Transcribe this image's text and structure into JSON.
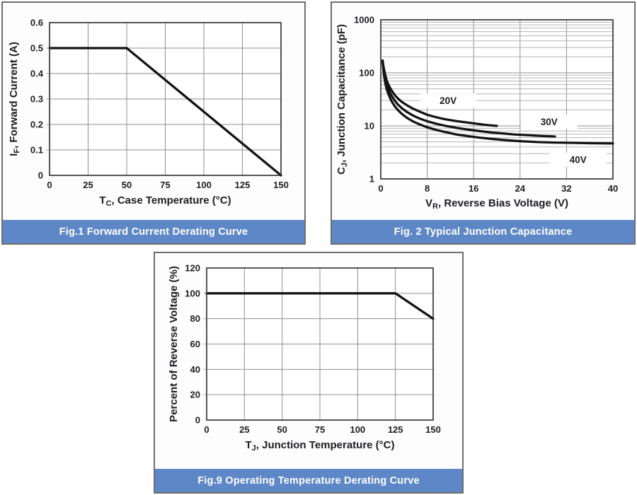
{
  "theme": {
    "page_bg": "#ffffff",
    "panel_bg": "#fdfdfd",
    "panel_border": "#6e6e6e",
    "caption_bg": "#5d87c6",
    "caption_text": "#ffffff",
    "plot_bg": "#ffffff",
    "plot_border": "#2b2b2b",
    "grid": "#8f8f8f",
    "grid_minor": "#b5b5b5",
    "curve": "#141414",
    "label": "#1d1d22",
    "annotation_bg": "#ffffff"
  },
  "chart_data": [
    {
      "id": "fig1",
      "type": "line",
      "caption": "Fig.1 Forward Current Derating Curve",
      "x_axis": {
        "title_parts": [
          {
            "t": "T"
          },
          {
            "s": "C"
          },
          {
            "t": ", Case Temperature (°C)"
          }
        ],
        "min": 0,
        "max": 150,
        "ticks": [
          {
            "v": 0,
            "label": "0"
          },
          {
            "v": 25,
            "label": "25"
          },
          {
            "v": 50,
            "label": "50"
          },
          {
            "v": 75,
            "label": "75"
          },
          {
            "v": 100,
            "label": "100"
          },
          {
            "v": 125,
            "label": "125"
          },
          {
            "v": 150,
            "label": "150"
          }
        ]
      },
      "y_axis": {
        "scale": "linear",
        "title_parts": [
          {
            "t": "I"
          },
          {
            "s": "F"
          },
          {
            "t": ", Forward Current (A)"
          }
        ],
        "min": 0,
        "max": 0.6,
        "ticks": [
          {
            "v": 0,
            "label": "0"
          },
          {
            "v": 0.1,
            "label": "0.1"
          },
          {
            "v": 0.2,
            "label": "0.2"
          },
          {
            "v": 0.3,
            "label": "0.3"
          },
          {
            "v": 0.4,
            "label": "0.4"
          },
          {
            "v": 0.5,
            "label": "0.5"
          },
          {
            "v": 0.6,
            "label": "0.6"
          }
        ],
        "outer_ticks": true
      },
      "grid": true,
      "series": [
        {
          "name": "forward-current-derating",
          "points": [
            [
              0,
              0.5
            ],
            [
              50,
              0.5
            ],
            [
              150,
              0
            ]
          ]
        }
      ],
      "annotations": []
    },
    {
      "id": "fig2",
      "type": "line",
      "caption": "Fig. 2 Typical Junction Capacitance",
      "x_axis": {
        "title_parts": [
          {
            "t": "V"
          },
          {
            "s": "R"
          },
          {
            "t": ", Reverse Bias Voltage (V)"
          }
        ],
        "min": 0,
        "max": 40,
        "ticks": [
          {
            "v": 0,
            "label": "0"
          },
          {
            "v": 8,
            "label": "8"
          },
          {
            "v": 16,
            "label": "16"
          },
          {
            "v": 24,
            "label": "24"
          },
          {
            "v": 32,
            "label": "32"
          },
          {
            "v": 40,
            "label": "40"
          }
        ]
      },
      "y_axis": {
        "scale": "log",
        "title_parts": [
          {
            "t": "C"
          },
          {
            "s": "J"
          },
          {
            "t": ", Junction Capacitance (pF)"
          }
        ],
        "min": 1,
        "max": 1000,
        "ticks": [
          {
            "v": 1,
            "label": "1"
          },
          {
            "v": 10,
            "label": "10"
          },
          {
            "v": 100,
            "label": "100"
          },
          {
            "v": 1000,
            "label": "1000"
          }
        ],
        "outer_ticks": false
      },
      "grid": true,
      "series": [
        {
          "name": "CJ-at-20V",
          "label": "20V",
          "points": [
            [
              0.3,
              170
            ],
            [
              0.45,
              135
            ],
            [
              0.6,
              110
            ],
            [
              0.8,
              88
            ],
            [
              1,
              73
            ],
            [
              1.3,
              60
            ],
            [
              1.6,
              52
            ],
            [
              2,
              44
            ],
            [
              2.5,
              37
            ],
            [
              3,
              32.5
            ],
            [
              3.7,
              28
            ],
            [
              4.5,
              24.5
            ],
            [
              5.5,
              21.3
            ],
            [
              6.5,
              19
            ],
            [
              8,
              16.2
            ],
            [
              9.5,
              14.6
            ],
            [
              11,
              13.4
            ],
            [
              13,
              12.3
            ],
            [
              15,
              11.5
            ],
            [
              17,
              10.8
            ],
            [
              18.5,
              10.3
            ],
            [
              20,
              10
            ]
          ]
        },
        {
          "name": "CJ-at-30V",
          "label": "30V",
          "points": [
            [
              0.3,
              170
            ],
            [
              0.45,
              125
            ],
            [
              0.6,
              97
            ],
            [
              0.8,
              75
            ],
            [
              1,
              61
            ],
            [
              1.3,
              49.5
            ],
            [
              1.6,
              42
            ],
            [
              2,
              35
            ],
            [
              2.5,
              29
            ],
            [
              3,
              25
            ],
            [
              3.7,
              21.3
            ],
            [
              4.5,
              18.3
            ],
            [
              5.5,
              15.8
            ],
            [
              6.5,
              14
            ],
            [
              8,
              12.2
            ],
            [
              9.5,
              11
            ],
            [
              11,
              10.1
            ],
            [
              13,
              9.2
            ],
            [
              15,
              8.5
            ],
            [
              17,
              8
            ],
            [
              19,
              7.5
            ],
            [
              21,
              7.2
            ],
            [
              23,
              6.9
            ],
            [
              25,
              6.7
            ],
            [
              27,
              6.5
            ],
            [
              28.5,
              6.4
            ],
            [
              30,
              6.3
            ]
          ]
        },
        {
          "name": "CJ-at-40V",
          "label": "40V",
          "points": [
            [
              0.3,
              170
            ],
            [
              0.45,
              112
            ],
            [
              0.6,
              84
            ],
            [
              0.8,
              62
            ],
            [
              1,
              50
            ],
            [
              1.3,
              40
            ],
            [
              1.6,
              33.5
            ],
            [
              2,
              27.5
            ],
            [
              2.5,
              22.8
            ],
            [
              3,
              19.6
            ],
            [
              3.7,
              16.6
            ],
            [
              4.5,
              14.2
            ],
            [
              5.5,
              12.2
            ],
            [
              6.5,
              10.9
            ],
            [
              8,
              9.4
            ],
            [
              9.5,
              8.4
            ],
            [
              11,
              7.7
            ],
            [
              13,
              6.9
            ],
            [
              15,
              6.4
            ],
            [
              17,
              6
            ],
            [
              19,
              5.7
            ],
            [
              21,
              5.45
            ],
            [
              24,
              5.15
            ],
            [
              27,
              4.95
            ],
            [
              30,
              4.85
            ],
            [
              33,
              4.78
            ],
            [
              36,
              4.72
            ],
            [
              40,
              4.65
            ]
          ]
        }
      ],
      "annotations": [
        {
          "text": "20V",
          "x": 11.6,
          "y": 30
        },
        {
          "text": "30V",
          "x": 29,
          "y": 12
        },
        {
          "text": "40V",
          "x": 34,
          "y": 2.3
        }
      ]
    },
    {
      "id": "fig3",
      "type": "line",
      "caption": "Fig.9 Operating Temperature Derating Curve",
      "x_axis": {
        "title_parts": [
          {
            "t": "T"
          },
          {
            "s": "J"
          },
          {
            "t": ", Junction Temperature (°C)"
          }
        ],
        "min": 0,
        "max": 150,
        "ticks": [
          {
            "v": 0,
            "label": "0"
          },
          {
            "v": 25,
            "label": "25"
          },
          {
            "v": 50,
            "label": "50"
          },
          {
            "v": 75,
            "label": "75"
          },
          {
            "v": 100,
            "label": "100"
          },
          {
            "v": 125,
            "label": "125"
          },
          {
            "v": 150,
            "label": "150"
          }
        ]
      },
      "y_axis": {
        "scale": "linear",
        "title_parts": [
          {
            "t": "Percent of Reverse Voltage (%)"
          }
        ],
        "min": 0,
        "max": 120,
        "ticks": [
          {
            "v": 0,
            "label": "0"
          },
          {
            "v": 20,
            "label": "20"
          },
          {
            "v": 40,
            "label": "40"
          },
          {
            "v": 60,
            "label": "60"
          },
          {
            "v": 80,
            "label": "80"
          },
          {
            "v": 100,
            "label": "100"
          },
          {
            "v": 120,
            "label": "120"
          }
        ],
        "outer_ticks": true
      },
      "grid": true,
      "series": [
        {
          "name": "reverse-voltage-derating",
          "points": [
            [
              0,
              100
            ],
            [
              125,
              100
            ],
            [
              150,
              80
            ]
          ]
        }
      ],
      "annotations": []
    }
  ]
}
